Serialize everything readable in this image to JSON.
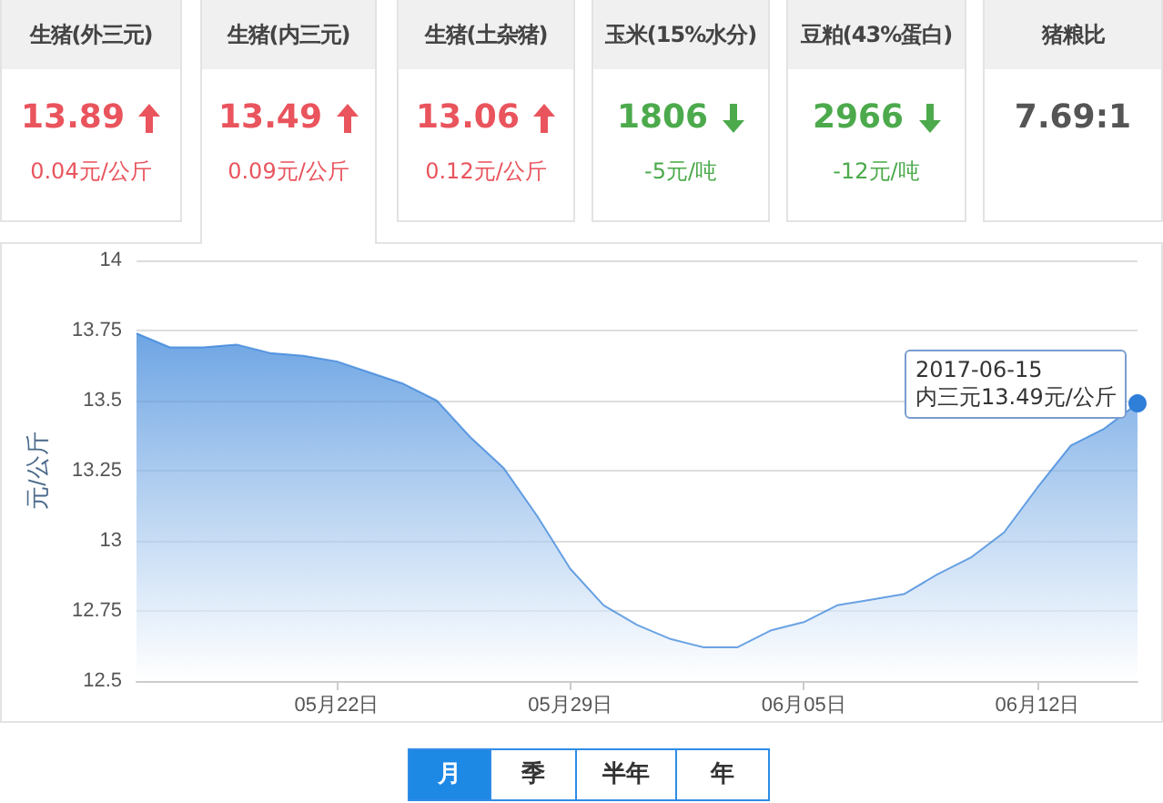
{
  "chart_data": [
    {
      "type": "other",
      "categories": [
        "生猪(外三元)",
        "生猪(内三元)",
        "生猪(土杂猪)",
        "玉米(15%水分)",
        "豆粕(43%蛋白)",
        "猪粮比"
      ],
      "annotations": [
        "13.89",
        "13.49",
        "13.06",
        "1806",
        "2966",
        "7.69:1",
        "0.04元/公斤",
        "0.09元/公斤",
        "0.12元/公斤",
        "-5元/吨",
        "-12元/吨"
      ]
    },
    {
      "type": "area",
      "ylabel": "元/公斤",
      "x": [
        "2017-05-16",
        "2017-05-17",
        "2017-05-18",
        "2017-05-19",
        "2017-05-20",
        "2017-05-21",
        "2017-05-22",
        "2017-05-23",
        "2017-05-24",
        "2017-05-25",
        "2017-05-26",
        "2017-05-27",
        "2017-05-28",
        "2017-05-29",
        "2017-05-30",
        "2017-05-31",
        "2017-06-01",
        "2017-06-02",
        "2017-06-03",
        "2017-06-04",
        "2017-06-05",
        "2017-06-06",
        "2017-06-07",
        "2017-06-08",
        "2017-06-09",
        "2017-06-10",
        "2017-06-11",
        "2017-06-12",
        "2017-06-13",
        "2017-06-14",
        "2017-06-15"
      ],
      "series": [
        {
          "color": "#2f7ed8",
          "values": [
            13.74,
            13.69,
            13.69,
            13.7,
            13.67,
            13.66,
            13.64,
            13.6,
            13.56,
            13.5,
            13.37,
            13.26,
            13.09,
            12.9,
            12.77,
            12.7,
            12.65,
            12.62,
            12.62,
            12.68,
            12.71,
            12.77,
            12.79,
            12.81,
            12.88,
            12.94,
            13.03,
            13.19,
            13.34,
            13.4,
            13.49
          ]
        }
      ],
      "xlim": [
        "2017-05-16",
        "2017-06-15"
      ],
      "xticks": [
        {
          "value": "2017-05-22",
          "label": "05月22日"
        },
        {
          "value": "2017-05-29",
          "label": "05月29日"
        },
        {
          "value": "2017-06-05",
          "label": "06月05日"
        },
        {
          "value": "2017-06-12",
          "label": "06月12日"
        }
      ],
      "ylim": [
        12.5,
        14
      ],
      "yticks": [
        12.5,
        12.75,
        13,
        13.25,
        13.5,
        13.75,
        14
      ],
      "grid": "y",
      "marker": "none",
      "annotations": [
        {
          "text": "2017-06-15\n内三元13.49元/公斤",
          "x": "2017-06-15",
          "y": 13.49
        },
        "月",
        "季",
        "半年",
        "年"
      ]
    }
  ]
}
